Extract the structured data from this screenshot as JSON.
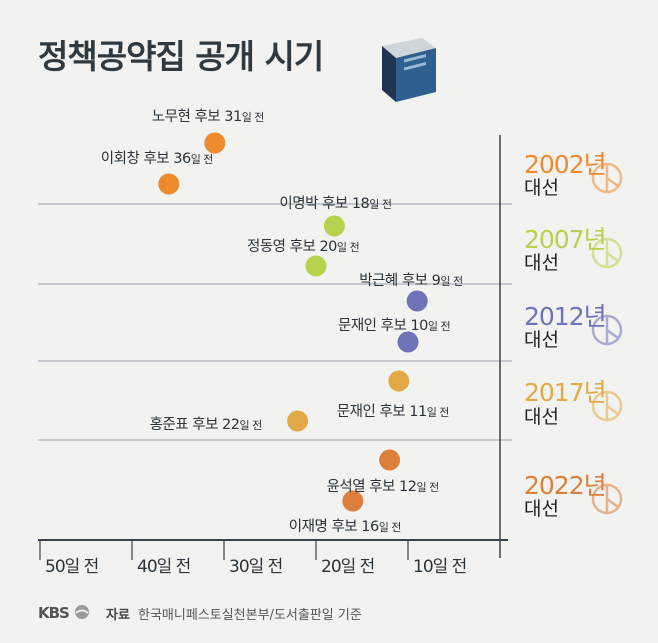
{
  "title": "정책공약집 공개 시기",
  "chart_data": {
    "type": "scatter",
    "title": "정책공약집 공개 시기",
    "xlabel": "",
    "ylabel": "",
    "xlim": [
      50,
      0
    ],
    "x_ticks": [
      "50일 전",
      "40일 전",
      "30일 전",
      "20일 전",
      "10일 전"
    ],
    "candidate_word": "후보",
    "suffix": "일 전",
    "groups": [
      {
        "year": "2002년",
        "election": "대선",
        "color": "#ef8a2e",
        "points": [
          {
            "name": "노무현",
            "days": 31
          },
          {
            "name": "이회창",
            "days": 36
          }
        ]
      },
      {
        "year": "2007년",
        "election": "대선",
        "color": "#b7d24f",
        "points": [
          {
            "name": "이명박",
            "days": 18
          },
          {
            "name": "정동영",
            "days": 20
          }
        ]
      },
      {
        "year": "2012년",
        "election": "대선",
        "color": "#6f74b9",
        "points": [
          {
            "name": "박근혜",
            "days": 9
          },
          {
            "name": "문재인",
            "days": 10
          }
        ]
      },
      {
        "year": "2017년",
        "election": "대선",
        "color": "#e1aa47",
        "points": [
          {
            "name": "문재인",
            "days": 11
          },
          {
            "name": "홍준표",
            "days": 22
          }
        ]
      },
      {
        "year": "2022년",
        "election": "대선",
        "color": "#dd7f3c",
        "points": [
          {
            "name": "윤석열",
            "days": 12
          },
          {
            "name": "이재명",
            "days": 16
          }
        ]
      }
    ]
  },
  "footer": {
    "logo": "KBS",
    "source_label": "자료",
    "source_text": "한국매니페스토실천본부/도서출판일 기준"
  }
}
